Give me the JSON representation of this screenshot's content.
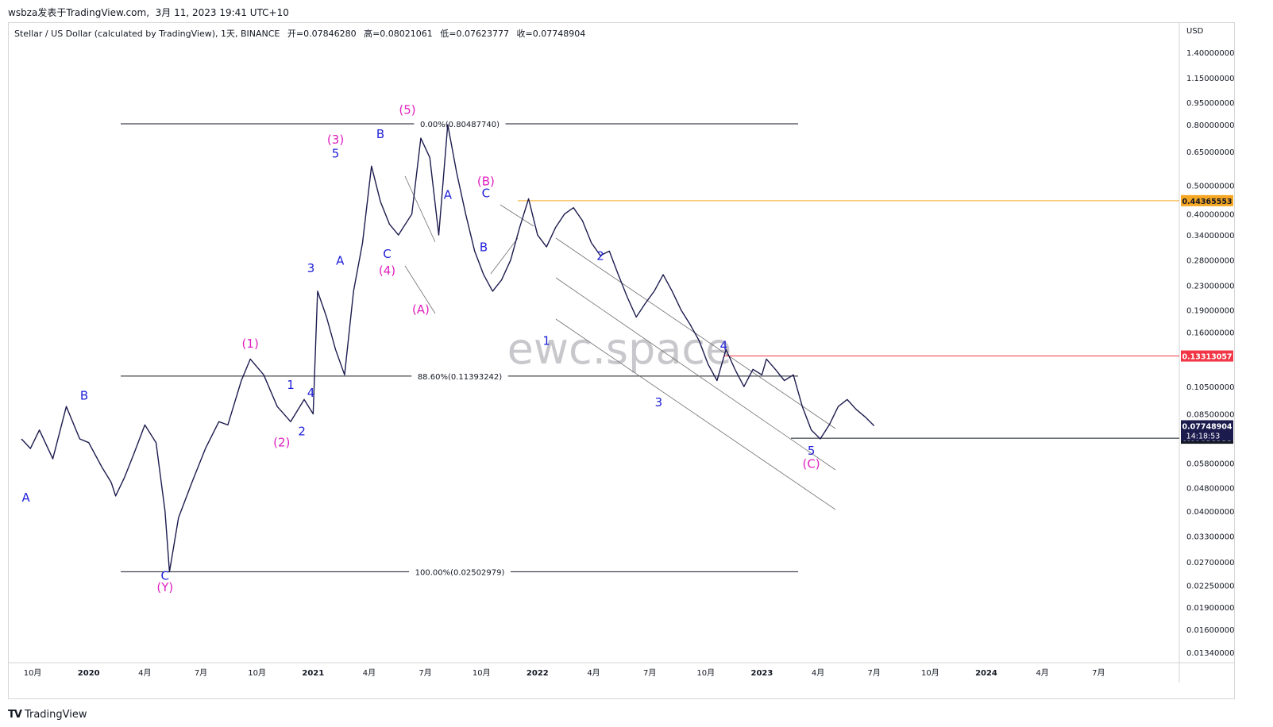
{
  "header": {
    "publisher": "wsbza发表于TradingView.com",
    "datetime": "3月 11, 2023 19:41 UTC+10"
  },
  "symbol": {
    "name": "Stellar / US Dollar (calculated by TradingView), 1天, BINANCE",
    "open": "开=0.07846280",
    "high": "高=0.08021061",
    "low": "低=0.07623777",
    "close": "收=0.07748904"
  },
  "footer": {
    "brand": "TradingView",
    "logo": "TV"
  },
  "watermark": "ewc.space",
  "colors": {
    "series": "#1c1b4e",
    "blue_label": "#1f1fd8",
    "magenta_label": "#e020c0",
    "orange_line": "#f5a623",
    "red_line": "#f23645",
    "last_price_bg": "#1c1b4e"
  },
  "chart_data": {
    "type": "line",
    "y_scale": "log",
    "currency": "USD",
    "y_ticks": [
      "1.40000000",
      "1.15000000",
      "0.95000000",
      "0.80000000",
      "0.65000000",
      "0.50000000",
      "0.40000000",
      "0.34000000",
      "0.28000000",
      "0.23000000",
      "0.19000000",
      "0.16000000",
      "0.10500000",
      "0.08500000",
      "0.05800000",
      "0.04800000",
      "0.04000000",
      "0.03300000",
      "0.02700000",
      "0.02250000",
      "0.01900000",
      "0.01600000",
      "0.01340000"
    ],
    "y_tick_values": [
      1.4,
      1.15,
      0.95,
      0.8,
      0.65,
      0.5,
      0.4,
      0.34,
      0.28,
      0.23,
      0.19,
      0.16,
      0.105,
      0.085,
      0.058,
      0.048,
      0.04,
      0.033,
      0.027,
      0.0225,
      0.019,
      0.016,
      0.0134
    ],
    "x_ticks": [
      {
        "label": "10月",
        "t": 2019.75
      },
      {
        "label": "2020",
        "t": 2020.0
      },
      {
        "label": "4月",
        "t": 2020.25
      },
      {
        "label": "7月",
        "t": 2020.5
      },
      {
        "label": "10月",
        "t": 2020.75
      },
      {
        "label": "2021",
        "t": 2021.0
      },
      {
        "label": "4月",
        "t": 2021.25
      },
      {
        "label": "7月",
        "t": 2021.5
      },
      {
        "label": "10月",
        "t": 2021.75
      },
      {
        "label": "2022",
        "t": 2022.0
      },
      {
        "label": "4月",
        "t": 2022.25
      },
      {
        "label": "7月",
        "t": 2022.5
      },
      {
        "label": "10月",
        "t": 2022.75
      },
      {
        "label": "2023",
        "t": 2023.0
      },
      {
        "label": "4月",
        "t": 2023.25
      },
      {
        "label": "7月",
        "t": 2023.5
      },
      {
        "label": "10月",
        "t": 2023.75
      },
      {
        "label": "2024",
        "t": 2024.0
      },
      {
        "label": "4月",
        "t": 2024.25
      },
      {
        "label": "7月",
        "t": 2024.5
      }
    ],
    "series": [
      {
        "points": [
          [
            2019.7,
            0.07
          ],
          [
            2019.74,
            0.065
          ],
          [
            2019.78,
            0.075
          ],
          [
            2019.84,
            0.06
          ],
          [
            2019.9,
            0.09
          ],
          [
            2019.96,
            0.07
          ],
          [
            2020.0,
            0.068
          ],
          [
            2020.06,
            0.056
          ],
          [
            2020.1,
            0.05
          ],
          [
            2020.12,
            0.045
          ],
          [
            2020.16,
            0.052
          ],
          [
            2020.2,
            0.062
          ],
          [
            2020.25,
            0.078
          ],
          [
            2020.3,
            0.068
          ],
          [
            2020.34,
            0.04
          ],
          [
            2020.36,
            0.025
          ],
          [
            2020.4,
            0.038
          ],
          [
            2020.46,
            0.05
          ],
          [
            2020.52,
            0.065
          ],
          [
            2020.58,
            0.08
          ],
          [
            2020.62,
            0.078
          ],
          [
            2020.68,
            0.11
          ],
          [
            2020.72,
            0.13
          ],
          [
            2020.78,
            0.115
          ],
          [
            2020.84,
            0.09
          ],
          [
            2020.9,
            0.08
          ],
          [
            2020.96,
            0.095
          ],
          [
            2021.0,
            0.085
          ],
          [
            2021.02,
            0.22
          ],
          [
            2021.06,
            0.18
          ],
          [
            2021.1,
            0.14
          ],
          [
            2021.14,
            0.115
          ],
          [
            2021.18,
            0.22
          ],
          [
            2021.22,
            0.32
          ],
          [
            2021.26,
            0.58
          ],
          [
            2021.3,
            0.44
          ],
          [
            2021.34,
            0.37
          ],
          [
            2021.38,
            0.34
          ],
          [
            2021.44,
            0.4
          ],
          [
            2021.48,
            0.72
          ],
          [
            2021.52,
            0.62
          ],
          [
            2021.56,
            0.34
          ],
          [
            2021.6,
            0.8
          ],
          [
            2021.64,
            0.55
          ],
          [
            2021.68,
            0.4
          ],
          [
            2021.72,
            0.3
          ],
          [
            2021.76,
            0.25
          ],
          [
            2021.8,
            0.22
          ],
          [
            2021.84,
            0.24
          ],
          [
            2021.88,
            0.28
          ],
          [
            2021.92,
            0.36
          ],
          [
            2021.96,
            0.45
          ],
          [
            2022.0,
            0.34
          ],
          [
            2022.04,
            0.31
          ],
          [
            2022.08,
            0.36
          ],
          [
            2022.12,
            0.4
          ],
          [
            2022.16,
            0.42
          ],
          [
            2022.2,
            0.38
          ],
          [
            2022.24,
            0.32
          ],
          [
            2022.28,
            0.29
          ],
          [
            2022.32,
            0.3
          ],
          [
            2022.36,
            0.25
          ],
          [
            2022.4,
            0.21
          ],
          [
            2022.44,
            0.18
          ],
          [
            2022.48,
            0.2
          ],
          [
            2022.52,
            0.22
          ],
          [
            2022.56,
            0.25
          ],
          [
            2022.6,
            0.22
          ],
          [
            2022.64,
            0.19
          ],
          [
            2022.68,
            0.17
          ],
          [
            2022.72,
            0.15
          ],
          [
            2022.76,
            0.125
          ],
          [
            2022.8,
            0.11
          ],
          [
            2022.84,
            0.14
          ],
          [
            2022.88,
            0.12
          ],
          [
            2022.92,
            0.105
          ],
          [
            2022.96,
            0.12
          ],
          [
            2023.0,
            0.115
          ],
          [
            2023.02,
            0.13
          ],
          [
            2023.06,
            0.12
          ],
          [
            2023.1,
            0.11
          ],
          [
            2023.14,
            0.115
          ],
          [
            2023.18,
            0.09
          ],
          [
            2023.22,
            0.075
          ],
          [
            2023.26,
            0.07
          ],
          [
            2023.3,
            0.078
          ],
          [
            2023.34,
            0.09
          ],
          [
            2023.38,
            0.095
          ],
          [
            2023.42,
            0.088
          ],
          [
            2023.46,
            0.083
          ],
          [
            2023.5,
            0.0775
          ]
        ]
      }
    ],
    "fib_levels": [
      {
        "label": "0.00%(0.80487740)",
        "value": 0.8049
      },
      {
        "label": "88.60%(0.11393242)",
        "value": 0.1139
      },
      {
        "label": "100.00%(0.02502979)",
        "value": 0.025
      }
    ],
    "h_lines": [
      {
        "label": "0.44365553",
        "value": 0.4437,
        "color": "#f5a623"
      },
      {
        "label": "0.13313057",
        "value": 0.1331,
        "color": "#f23645"
      },
      {
        "label": "0.07038935",
        "value": 0.0704,
        "color": "#131722"
      }
    ],
    "last_price": {
      "label": "0.07748904",
      "countdown": "14:18:53",
      "value": 0.0775
    },
    "wave_labels": [
      {
        "text": "A",
        "t": 2019.72,
        "v": 0.043,
        "c": "blue"
      },
      {
        "text": "B",
        "t": 2019.98,
        "v": 0.095,
        "c": "blue"
      },
      {
        "text": "C",
        "t": 2020.34,
        "v": 0.0235,
        "c": "blue"
      },
      {
        "text": "(Y)",
        "t": 2020.34,
        "v": 0.0215,
        "c": "magenta"
      },
      {
        "text": "(1)",
        "t": 2020.72,
        "v": 0.142,
        "c": "magenta"
      },
      {
        "text": "(2)",
        "t": 2020.86,
        "v": 0.066,
        "c": "magenta"
      },
      {
        "text": "1",
        "t": 2020.9,
        "v": 0.103,
        "c": "blue"
      },
      {
        "text": "2",
        "t": 2020.95,
        "v": 0.072,
        "c": "blue"
      },
      {
        "text": "3",
        "t": 2020.99,
        "v": 0.255,
        "c": "blue"
      },
      {
        "text": "4",
        "t": 2020.99,
        "v": 0.097,
        "c": "blue"
      },
      {
        "text": "A",
        "t": 2021.12,
        "v": 0.27,
        "c": "blue"
      },
      {
        "text": "(3)",
        "t": 2021.1,
        "v": 0.69,
        "c": "magenta"
      },
      {
        "text": "5",
        "t": 2021.1,
        "v": 0.62,
        "c": "blue"
      },
      {
        "text": "B",
        "t": 2021.3,
        "v": 0.72,
        "c": "blue"
      },
      {
        "text": "C",
        "t": 2021.33,
        "v": 0.285,
        "c": "blue"
      },
      {
        "text": "(4)",
        "t": 2021.33,
        "v": 0.25,
        "c": "magenta"
      },
      {
        "text": "(5)",
        "t": 2021.42,
        "v": 0.87,
        "c": "magenta"
      },
      {
        "text": "A",
        "t": 2021.6,
        "v": 0.45,
        "c": "blue"
      },
      {
        "text": "(A)",
        "t": 2021.48,
        "v": 0.185,
        "c": "magenta"
      },
      {
        "text": "(B)",
        "t": 2021.77,
        "v": 0.5,
        "c": "magenta"
      },
      {
        "text": "C",
        "t": 2021.77,
        "v": 0.455,
        "c": "blue"
      },
      {
        "text": "B",
        "t": 2021.76,
        "v": 0.3,
        "c": "blue"
      },
      {
        "text": "1",
        "t": 2022.04,
        "v": 0.145,
        "c": "blue"
      },
      {
        "text": "2",
        "t": 2022.28,
        "v": 0.28,
        "c": "blue"
      },
      {
        "text": "3",
        "t": 2022.54,
        "v": 0.09,
        "c": "blue"
      },
      {
        "text": "4",
        "t": 2022.83,
        "v": 0.14,
        "c": "blue"
      },
      {
        "text": "5",
        "t": 2023.22,
        "v": 0.062,
        "c": "blue"
      },
      {
        "text": "(C)",
        "t": 2023.22,
        "v": 0.056,
        "c": "magenta"
      }
    ]
  }
}
